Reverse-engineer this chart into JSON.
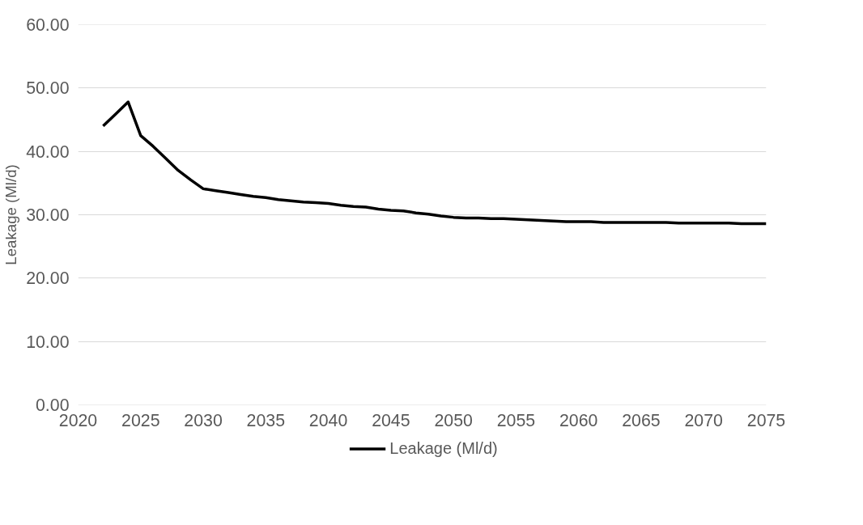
{
  "chart_data": {
    "type": "line",
    "ylabel": "Leakage (Ml/d)",
    "x": [
      2022,
      2023,
      2024,
      2025,
      2026,
      2027,
      2028,
      2029,
      2030,
      2031,
      2032,
      2033,
      2034,
      2035,
      2036,
      2037,
      2038,
      2039,
      2040,
      2041,
      2042,
      2043,
      2044,
      2045,
      2046,
      2047,
      2048,
      2049,
      2050,
      2051,
      2052,
      2053,
      2054,
      2055,
      2056,
      2057,
      2058,
      2059,
      2060,
      2061,
      2062,
      2063,
      2064,
      2065,
      2066,
      2067,
      2068,
      2069,
      2070,
      2071,
      2072,
      2073,
      2074,
      2075
    ],
    "series": [
      {
        "name": "Leakage (Ml/d)",
        "color": "#000000",
        "values": [
          44.0,
          45.9,
          47.8,
          42.5,
          40.8,
          38.9,
          37.0,
          35.5,
          34.1,
          33.8,
          33.5,
          33.2,
          32.9,
          32.7,
          32.4,
          32.2,
          32.0,
          31.9,
          31.8,
          31.5,
          31.3,
          31.2,
          30.9,
          30.7,
          30.6,
          30.3,
          30.1,
          29.8,
          29.6,
          29.5,
          29.5,
          29.4,
          29.4,
          29.3,
          29.2,
          29.1,
          29.0,
          28.9,
          28.9,
          28.9,
          28.8,
          28.8,
          28.8,
          28.8,
          28.8,
          28.8,
          28.7,
          28.7,
          28.7,
          28.7,
          28.7,
          28.6,
          28.6,
          28.6
        ]
      }
    ],
    "xlim": [
      2020,
      2075
    ],
    "xticks": [
      2020,
      2025,
      2030,
      2035,
      2040,
      2045,
      2050,
      2055,
      2060,
      2065,
      2070,
      2075
    ],
    "ylim": [
      0,
      60
    ],
    "yticks": [
      {
        "value": 0,
        "label": "0.00"
      },
      {
        "value": 10,
        "label": "10.00"
      },
      {
        "value": 20,
        "label": "20.00"
      },
      {
        "value": 30,
        "label": "30.00"
      },
      {
        "value": 40,
        "label": "40.00"
      },
      {
        "value": 50,
        "label": "50.00"
      },
      {
        "value": 60,
        "label": "60.00"
      }
    ],
    "grid": "y",
    "legend": "bottom",
    "marker": "none",
    "line_style": "solid"
  }
}
